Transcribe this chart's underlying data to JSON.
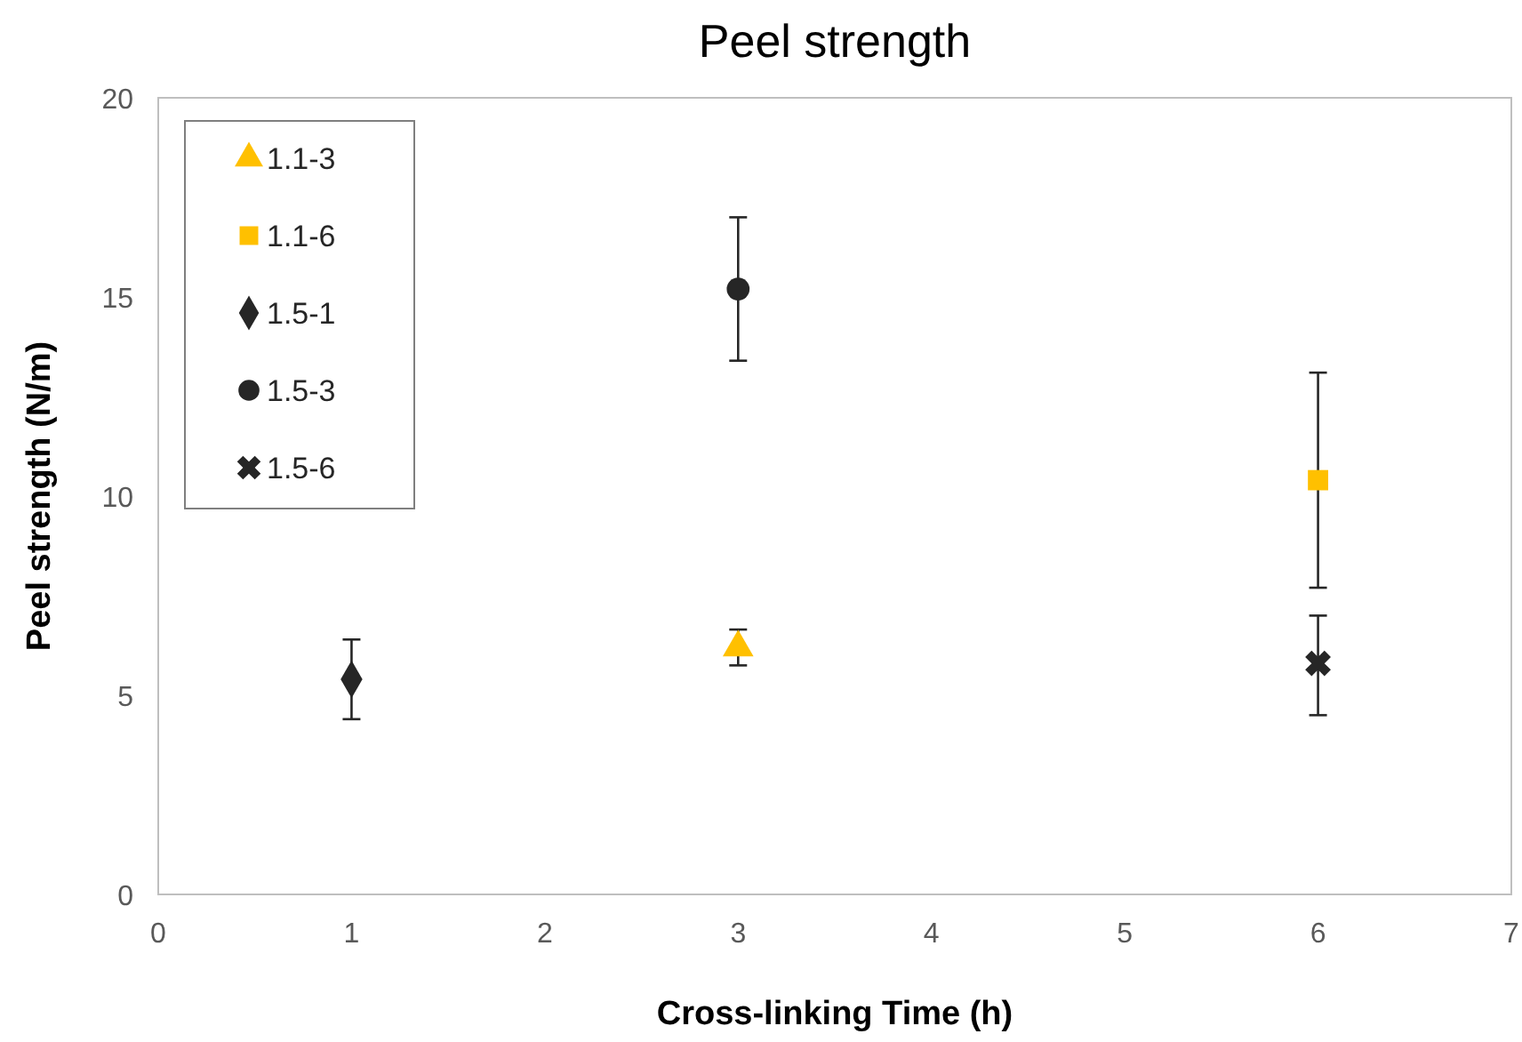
{
  "chart_data": {
    "type": "scatter",
    "title": "Peel strength",
    "xlabel": "Cross-linking Time (h)",
    "ylabel": "Peel strength (N/m)",
    "xlim": [
      0,
      7
    ],
    "xticks": [
      0,
      1,
      2,
      3,
      4,
      5,
      6,
      7
    ],
    "ylim": [
      0,
      20
    ],
    "yticks": [
      0,
      5,
      10,
      15,
      20
    ],
    "grid": false,
    "legend": "top left",
    "series": [
      {
        "name": "1.1-3",
        "color": "#ffc000",
        "marker": "triangle",
        "x": [
          3
        ],
        "values": [
          6.2
        ],
        "errors": [
          0.45
        ]
      },
      {
        "name": "1.1-6",
        "color": "#ffc000",
        "marker": "square",
        "x": [
          6
        ],
        "values": [
          10.4
        ],
        "errors": [
          2.7
        ]
      },
      {
        "name": "1.5-1",
        "color": "#262626",
        "marker": "diamond",
        "x": [
          1
        ],
        "values": [
          5.4
        ],
        "errors": [
          1.0
        ]
      },
      {
        "name": "1.5-3",
        "color": "#262626",
        "marker": "circle",
        "x": [
          3
        ],
        "values": [
          15.2
        ],
        "errors": [
          1.8
        ]
      },
      {
        "name": "1.5-6",
        "color": "#262626",
        "marker": "cross",
        "x": [
          6
        ],
        "values": [
          5.8
        ],
        "errors": [
          [
            4.5,
            7.0
          ]
        ]
      }
    ]
  }
}
